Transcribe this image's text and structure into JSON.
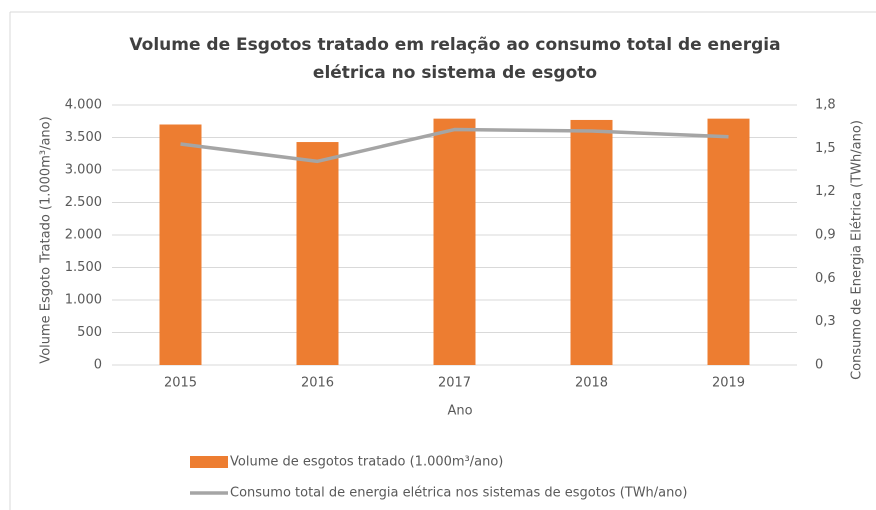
{
  "chart_data": {
    "type": "bar-line",
    "title": [
      "Volume de Esgotos tratado em relação ao consumo total de energia",
      "elétrica no sistema de esgoto"
    ],
    "x_label": "Ano",
    "y_label": "Volume Esgoto Tratado (1.000m³/ano)",
    "y2_label": "Consumo de Energia Elétrica (TWh/ano)",
    "categories": [
      "2015",
      "2016",
      "2017",
      "2018",
      "2019"
    ],
    "series": [
      {
        "name": "Volume de esgotos tratado (1.000m³/ano)",
        "type": "bar",
        "color": "#ed7d31",
        "axis": "y",
        "values": [
          3700,
          3430,
          3790,
          3770,
          3790
        ]
      },
      {
        "name": "Consumo total de energia elétrica nos sistemas de esgotos (TWh/ano)",
        "type": "line",
        "color": "#a5a5a5",
        "axis": "y2",
        "values": [
          1.53,
          1.41,
          1.63,
          1.62,
          1.58
        ]
      }
    ],
    "ylim": [
      0,
      4000
    ],
    "yticks": [
      0,
      {
        "value": 500,
        "label": "500"
      },
      {
        "value": 1000,
        "label": "1.000"
      },
      {
        "value": 1500,
        "label": "1.500"
      },
      {
        "value": 2000,
        "label": "2.000"
      },
      {
        "value": 2500,
        "label": "2.500"
      },
      {
        "value": 3000,
        "label": "3.000"
      },
      {
        "value": 3500,
        "label": "3.500"
      },
      {
        "value": 4000,
        "label": "4.000"
      }
    ],
    "y2lim": [
      0,
      1.8
    ],
    "y2ticks": [
      0,
      {
        "value": 0.3,
        "label": "0,3"
      },
      {
        "value": 0.6,
        "label": "0,6"
      },
      {
        "value": 0.9,
        "label": "0,9"
      },
      {
        "value": 1.2,
        "label": "1,2"
      },
      {
        "value": 1.5,
        "label": "1,5"
      },
      {
        "value": 1.8,
        "label": "1,8"
      }
    ],
    "grid": true
  }
}
